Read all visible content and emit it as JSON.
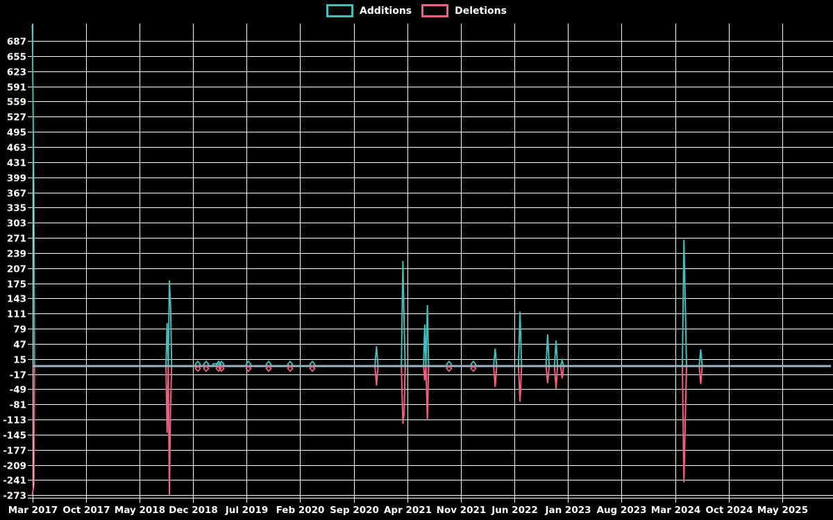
{
  "chart_data": {
    "type": "line",
    "title": "",
    "xlabel": "",
    "ylabel": "",
    "grid": true,
    "legend_position": "top-center",
    "background_color": "#000000",
    "gridline_color": "#ffffff",
    "text_color": "#ffffff",
    "baseline_color": "#9ab6c2",
    "y_ticks": [
      687,
      655,
      623,
      591,
      559,
      527,
      495,
      463,
      431,
      399,
      367,
      335,
      303,
      271,
      239,
      207,
      175,
      143,
      111,
      79,
      47,
      15,
      -17,
      -49,
      -81,
      -113,
      -145,
      -177,
      -209,
      -241,
      -273
    ],
    "x_tick_labels": [
      "Mar 2017",
      "Oct 2017",
      "May 2018",
      "Dec 2018",
      "Jul 2019",
      "Feb 2020",
      "Sep 2020",
      "Apr 2021",
      "Nov 2021",
      "Jun 2022",
      "Jan 2023",
      "Aug 2023",
      "Mar 2024",
      "Oct 2024",
      "May 2025"
    ],
    "x_unit": "months since Mar 2017",
    "ylim": [
      -280,
      722
    ],
    "xlim_months": [
      0,
      104.5
    ],
    "series": [
      {
        "name": "Deletions",
        "color": "#f35f80",
        "points": [
          [
            0,
            -271
          ],
          [
            0.2,
            -252
          ],
          [
            0.28,
            0
          ],
          [
            17.45,
            0
          ],
          [
            17.6,
            -141
          ],
          [
            17.75,
            0
          ],
          [
            17.9,
            -272
          ],
          [
            18.05,
            -85
          ],
          [
            18.2,
            0
          ],
          [
            44.75,
            0
          ],
          [
            44.95,
            -41
          ],
          [
            45.15,
            0
          ],
          [
            48.2,
            0
          ],
          [
            48.4,
            -122
          ],
          [
            48.55,
            -100
          ],
          [
            48.7,
            0
          ],
          [
            51.1,
            0
          ],
          [
            51.25,
            -30
          ],
          [
            51.4,
            0
          ],
          [
            51.6,
            -114
          ],
          [
            51.75,
            0
          ],
          [
            60.25,
            0
          ],
          [
            60.45,
            -44
          ],
          [
            60.65,
            0
          ],
          [
            63.5,
            0
          ],
          [
            63.7,
            -75
          ],
          [
            63.9,
            0
          ],
          [
            67.1,
            0
          ],
          [
            67.3,
            -36
          ],
          [
            67.5,
            0
          ],
          [
            68.2,
            0
          ],
          [
            68.4,
            -48
          ],
          [
            68.6,
            0
          ],
          [
            69.0,
            0
          ],
          [
            69.2,
            -26
          ],
          [
            69.4,
            0
          ],
          [
            84.9,
            0
          ],
          [
            85.1,
            -246
          ],
          [
            85.3,
            -97
          ],
          [
            85.45,
            0
          ],
          [
            87.1,
            0
          ],
          [
            87.3,
            -38
          ],
          [
            87.5,
            0
          ],
          [
            104.3,
            0
          ]
        ]
      },
      {
        "name": "Additions",
        "color": "#45bdb8",
        "points": [
          [
            0,
            722
          ],
          [
            0.2,
            355
          ],
          [
            0.28,
            0
          ],
          [
            17.45,
            0
          ],
          [
            17.6,
            91
          ],
          [
            17.75,
            0
          ],
          [
            17.9,
            181
          ],
          [
            18.05,
            127
          ],
          [
            18.2,
            0
          ],
          [
            23.5,
            0
          ],
          [
            23.65,
            5
          ],
          [
            24.3,
            5
          ],
          [
            24.45,
            0
          ],
          [
            44.75,
            0
          ],
          [
            44.95,
            42
          ],
          [
            45.15,
            0
          ],
          [
            48.2,
            0
          ],
          [
            48.4,
            222
          ],
          [
            48.55,
            93
          ],
          [
            48.7,
            0
          ],
          [
            51.1,
            0
          ],
          [
            51.25,
            88
          ],
          [
            51.4,
            0
          ],
          [
            51.6,
            129
          ],
          [
            51.75,
            0
          ],
          [
            60.25,
            0
          ],
          [
            60.45,
            37
          ],
          [
            60.65,
            0
          ],
          [
            63.5,
            0
          ],
          [
            63.7,
            115
          ],
          [
            63.9,
            0
          ],
          [
            67.1,
            0
          ],
          [
            67.3,
            67
          ],
          [
            67.5,
            0
          ],
          [
            68.2,
            0
          ],
          [
            68.4,
            54
          ],
          [
            68.6,
            0
          ],
          [
            69.0,
            0
          ],
          [
            69.2,
            12
          ],
          [
            69.4,
            0
          ],
          [
            84.9,
            0
          ],
          [
            85.1,
            267
          ],
          [
            85.3,
            118
          ],
          [
            85.45,
            0
          ],
          [
            87.1,
            0
          ],
          [
            87.3,
            35
          ],
          [
            87.5,
            0
          ],
          [
            104.3,
            0
          ]
        ]
      }
    ],
    "baseline_markers": {
      "months": [
        21.61,
        22.7,
        24.33,
        24.7,
        28.23,
        30.86,
        33.67,
        36.57,
        54.43,
        57.6
      ],
      "additions_value": 4,
      "deletions_value": -5
    }
  },
  "legend": {
    "additions_label": "Additions",
    "deletions_label": "Deletions"
  }
}
